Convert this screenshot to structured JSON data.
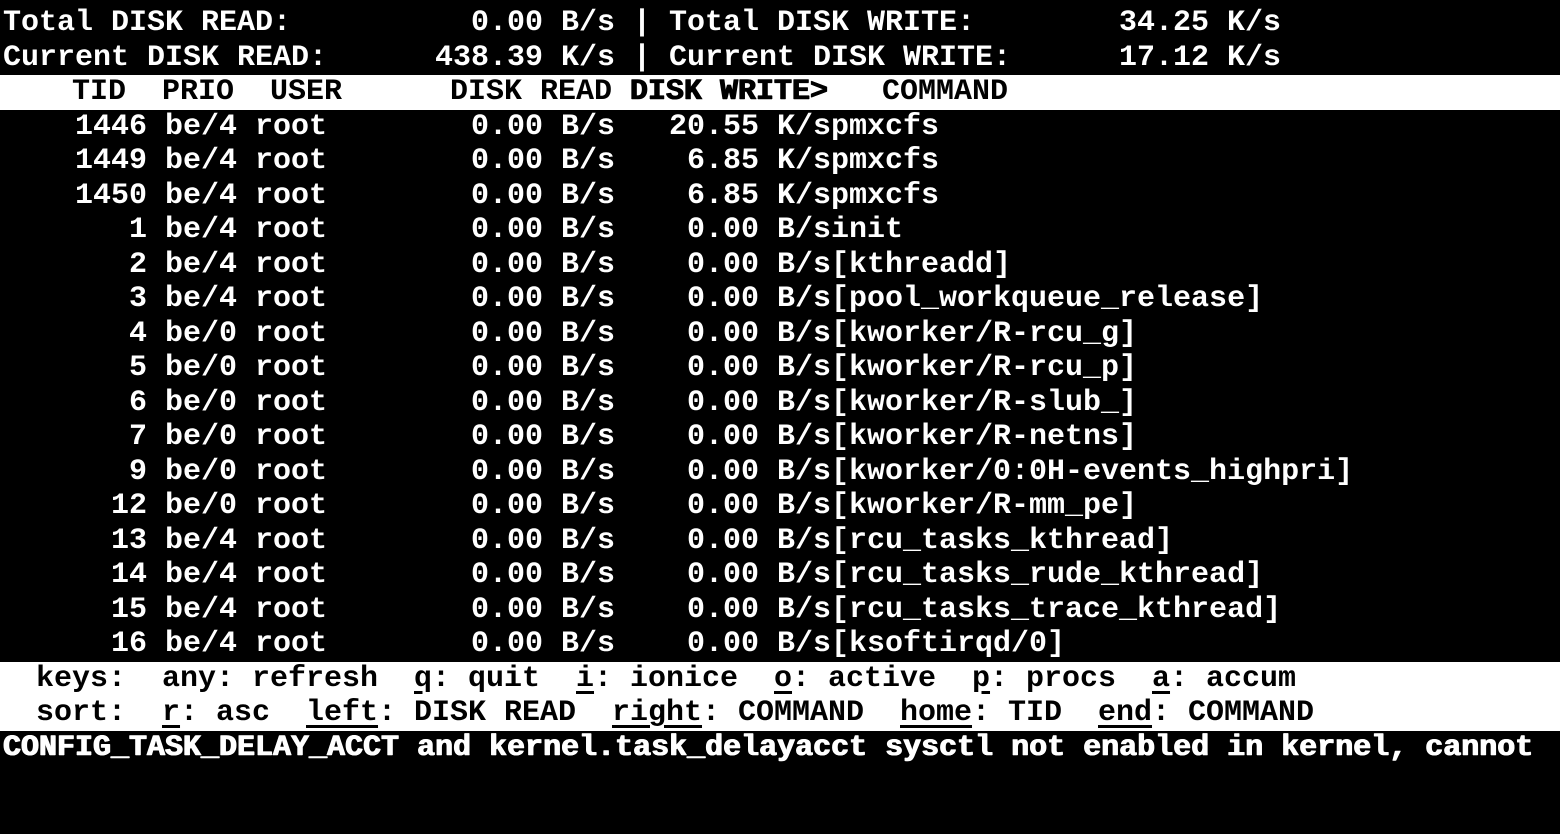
{
  "app": "iotop",
  "separator": "|",
  "colors": {
    "background": "#000000",
    "foreground": "#ffffff",
    "inverted_background": "#ffffff",
    "inverted_foreground": "#000000"
  },
  "summary": {
    "total_read_label": "Total DISK READ:",
    "total_read_value": "0.00 B/s",
    "total_write_label": "Total DISK WRITE:",
    "total_write_value": "34.25 K/s",
    "current_read_label": "Current DISK READ:",
    "current_read_value": "438.39 K/s",
    "current_write_label": "Current DISK WRITE:",
    "current_write_value": "17.12 K/s"
  },
  "table": {
    "columns": [
      "TID",
      "PRIO",
      "USER",
      "DISK READ",
      "DISK WRITE>",
      "COMMAND"
    ],
    "sort_column": "DISK WRITE>",
    "rows": [
      {
        "tid": "1446",
        "prio": "be/4",
        "user": "root",
        "disk_read": "0.00 B/s",
        "disk_write": "20.55 K/s",
        "command": "pmxcfs"
      },
      {
        "tid": "1449",
        "prio": "be/4",
        "user": "root",
        "disk_read": "0.00 B/s",
        "disk_write": "6.85 K/s",
        "command": "pmxcfs"
      },
      {
        "tid": "1450",
        "prio": "be/4",
        "user": "root",
        "disk_read": "0.00 B/s",
        "disk_write": "6.85 K/s",
        "command": "pmxcfs"
      },
      {
        "tid": "1",
        "prio": "be/4",
        "user": "root",
        "disk_read": "0.00 B/s",
        "disk_write": "0.00 B/s",
        "command": "init"
      },
      {
        "tid": "2",
        "prio": "be/4",
        "user": "root",
        "disk_read": "0.00 B/s",
        "disk_write": "0.00 B/s",
        "command": "[kthreadd]"
      },
      {
        "tid": "3",
        "prio": "be/4",
        "user": "root",
        "disk_read": "0.00 B/s",
        "disk_write": "0.00 B/s",
        "command": "[pool_workqueue_release]"
      },
      {
        "tid": "4",
        "prio": "be/0",
        "user": "root",
        "disk_read": "0.00 B/s",
        "disk_write": "0.00 B/s",
        "command": "[kworker/R-rcu_g]"
      },
      {
        "tid": "5",
        "prio": "be/0",
        "user": "root",
        "disk_read": "0.00 B/s",
        "disk_write": "0.00 B/s",
        "command": "[kworker/R-rcu_p]"
      },
      {
        "tid": "6",
        "prio": "be/0",
        "user": "root",
        "disk_read": "0.00 B/s",
        "disk_write": "0.00 B/s",
        "command": "[kworker/R-slub_]"
      },
      {
        "tid": "7",
        "prio": "be/0",
        "user": "root",
        "disk_read": "0.00 B/s",
        "disk_write": "0.00 B/s",
        "command": "[kworker/R-netns]"
      },
      {
        "tid": "9",
        "prio": "be/0",
        "user": "root",
        "disk_read": "0.00 B/s",
        "disk_write": "0.00 B/s",
        "command": "[kworker/0:0H-events_highpri]"
      },
      {
        "tid": "12",
        "prio": "be/0",
        "user": "root",
        "disk_read": "0.00 B/s",
        "disk_write": "0.00 B/s",
        "command": "[kworker/R-mm_pe]"
      },
      {
        "tid": "13",
        "prio": "be/4",
        "user": "root",
        "disk_read": "0.00 B/s",
        "disk_write": "0.00 B/s",
        "command": "[rcu_tasks_kthread]"
      },
      {
        "tid": "14",
        "prio": "be/4",
        "user": "root",
        "disk_read": "0.00 B/s",
        "disk_write": "0.00 B/s",
        "command": "[rcu_tasks_rude_kthread]"
      },
      {
        "tid": "15",
        "prio": "be/4",
        "user": "root",
        "disk_read": "0.00 B/s",
        "disk_write": "0.00 B/s",
        "command": "[rcu_tasks_trace_kthread]"
      },
      {
        "tid": "16",
        "prio": "be/4",
        "user": "root",
        "disk_read": "0.00 B/s",
        "disk_write": "0.00 B/s",
        "command": "[ksoftirqd/0]"
      }
    ]
  },
  "help": {
    "keys": {
      "label": "keys:",
      "items": [
        {
          "key": "any",
          "desc": "refresh",
          "underlined": false
        },
        {
          "key": "q",
          "desc": "quit",
          "underlined": true
        },
        {
          "key": "i",
          "desc": "ionice",
          "underlined": true
        },
        {
          "key": "o",
          "desc": "active",
          "underlined": true
        },
        {
          "key": "p",
          "desc": "procs",
          "underlined": true
        },
        {
          "key": "a",
          "desc": "accum",
          "underlined": true
        }
      ]
    },
    "sort": {
      "label": "sort:",
      "items": [
        {
          "key": "r",
          "desc": "asc",
          "underlined": true
        },
        {
          "key": "left",
          "desc": "DISK READ",
          "underlined": true
        },
        {
          "key": "right",
          "desc": "COMMAND",
          "underlined": true
        },
        {
          "key": "home",
          "desc": "TID",
          "underlined": true
        },
        {
          "key": "end",
          "desc": "COMMAND",
          "underlined": true
        }
      ]
    }
  },
  "status_message": "CONFIG_TASK_DELAY_ACCT and kernel.task_delayacct sysctl not enabled in kernel, cannot"
}
